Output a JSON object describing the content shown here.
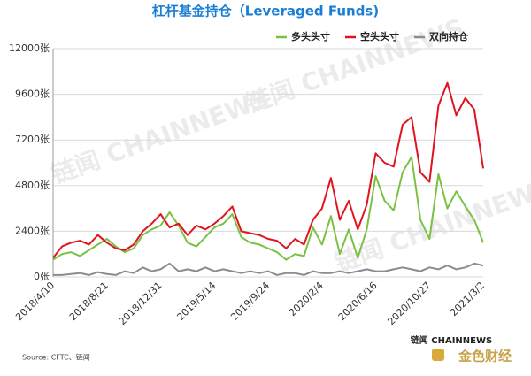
{
  "chart_data": {
    "type": "line",
    "title": "杠杆基金持仓（Leveraged Funds)",
    "source": "Source: CFTC、链闻",
    "watermark": "链闻 CHAINNEWS",
    "logo": [
      "链闻 CHAINNEWS",
      "金色财经"
    ],
    "categories": [
      "2018/4/10",
      null,
      null,
      null,
      null,
      null,
      "2018/8/21",
      null,
      null,
      null,
      null,
      null,
      "2018/12/31",
      null,
      null,
      null,
      null,
      null,
      "2019/5/14",
      null,
      null,
      null,
      null,
      null,
      "2019/9/24",
      null,
      null,
      null,
      null,
      null,
      "2020/2/4",
      null,
      null,
      null,
      null,
      null,
      "2020/6/16",
      null,
      null,
      null,
      null,
      null,
      "2020/10/27",
      null,
      null,
      null,
      null,
      null,
      "2021/3/2"
    ],
    "series": [
      {
        "name": "多头头寸",
        "color": "#7ac143",
        "values": [
          900,
          1200,
          1300,
          1100,
          1400,
          1700,
          2000,
          1600,
          1300,
          1500,
          2200,
          2500,
          2700,
          3400,
          2700,
          1800,
          1600,
          2100,
          2600,
          2800,
          3300,
          2100,
          1800,
          1700,
          1500,
          1300,
          900,
          1200,
          1100,
          2600,
          1700,
          3200,
          1200,
          2500,
          1000,
          2500,
          5300,
          4000,
          3500,
          5500,
          6300,
          3000,
          2000,
          5400,
          3600,
          4500,
          3700,
          3000,
          1800
        ]
      },
      {
        "name": "空头头寸",
        "color": "#e0141e",
        "values": [
          1000,
          1600,
          1800,
          1900,
          1700,
          2200,
          1800,
          1500,
          1400,
          1700,
          2400,
          2800,
          3300,
          2600,
          2800,
          2200,
          2700,
          2500,
          2800,
          3200,
          3700,
          2400,
          2300,
          2200,
          2000,
          1900,
          1500,
          2000,
          1700,
          3000,
          3600,
          5200,
          3000,
          4000,
          2500,
          3800,
          6500,
          6000,
          5800,
          8000,
          8400,
          5500,
          5000,
          9000,
          10200,
          8500,
          9400,
          8800,
          5700
        ]
      },
      {
        "name": "双向持仓",
        "color": "#8c8c8c",
        "values": [
          100,
          100,
          150,
          200,
          100,
          250,
          150,
          100,
          300,
          200,
          500,
          300,
          400,
          700,
          300,
          400,
          300,
          500,
          300,
          400,
          300,
          200,
          300,
          200,
          300,
          100,
          200,
          200,
          100,
          300,
          200,
          200,
          300,
          200,
          300,
          400,
          300,
          300,
          400,
          500,
          400,
          300,
          500,
          400,
          600,
          400,
          500,
          700,
          600
        ]
      }
    ],
    "ylim": [
      0,
      12000
    ],
    "yticks": [
      {
        "value": 0,
        "label": "0张"
      },
      {
        "value": 2400,
        "label": "2400张"
      },
      {
        "value": 4800,
        "label": "4800张"
      },
      {
        "value": 7200,
        "label": "7200张"
      },
      {
        "value": 9600,
        "label": "9600张"
      },
      {
        "value": 12000,
        "label": "12000张"
      }
    ],
    "grid": true,
    "legend": "top-right"
  }
}
